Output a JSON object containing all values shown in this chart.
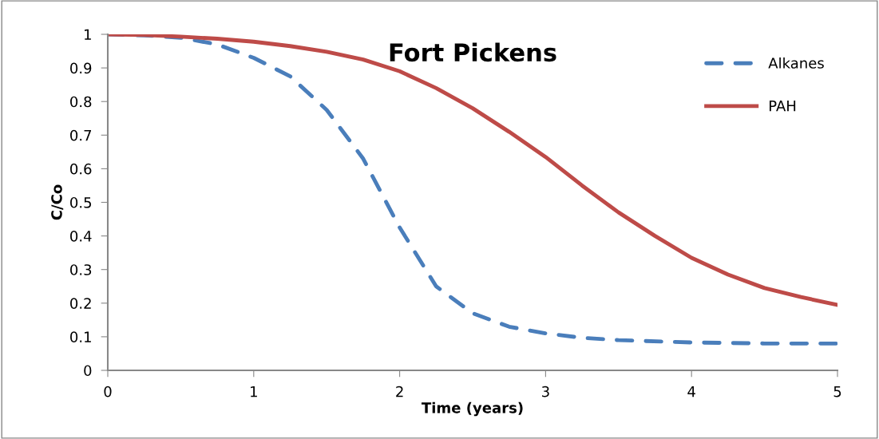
{
  "chart_data": {
    "type": "line",
    "title": "Fort Pickens",
    "xlabel": "Time (years)",
    "ylabel": "C/Co",
    "xlim": [
      0,
      5
    ],
    "xticks": [
      0,
      1,
      2,
      3,
      4,
      5
    ],
    "ylim": [
      0,
      1
    ],
    "yticks": [
      0,
      0.1,
      0.2,
      0.3,
      0.4,
      0.5,
      0.6,
      0.7,
      0.8,
      0.9,
      1
    ],
    "grid": false,
    "legend": "top right",
    "marker": "none",
    "series": [
      {
        "name": "Alkanes",
        "color": "#4a7ebb",
        "line_style": "dashed",
        "x": [
          0,
          0.25,
          0.5,
          0.75,
          1,
          1.25,
          1.5,
          1.75,
          2,
          2.25,
          2.5,
          2.75,
          3,
          3.25,
          3.5,
          4,
          4.5,
          5
        ],
        "values": [
          1.0,
          0.997,
          0.99,
          0.97,
          0.93,
          0.875,
          0.775,
          0.63,
          0.425,
          0.25,
          0.17,
          0.13,
          0.11,
          0.097,
          0.09,
          0.083,
          0.08,
          0.08
        ]
      },
      {
        "name": "PAH",
        "color": "#be4b48",
        "line_style": "solid",
        "x": [
          0,
          0.25,
          0.5,
          0.75,
          1,
          1.25,
          1.5,
          1.75,
          2,
          2.25,
          2.5,
          2.75,
          3,
          3.25,
          3.5,
          3.75,
          4,
          4.25,
          4.5,
          4.75,
          5
        ],
        "values": [
          1.0,
          0.998,
          0.993,
          0.987,
          0.978,
          0.965,
          0.948,
          0.925,
          0.89,
          0.84,
          0.78,
          0.71,
          0.635,
          0.55,
          0.47,
          0.4,
          0.335,
          0.285,
          0.245,
          0.218,
          0.195
        ]
      }
    ]
  }
}
